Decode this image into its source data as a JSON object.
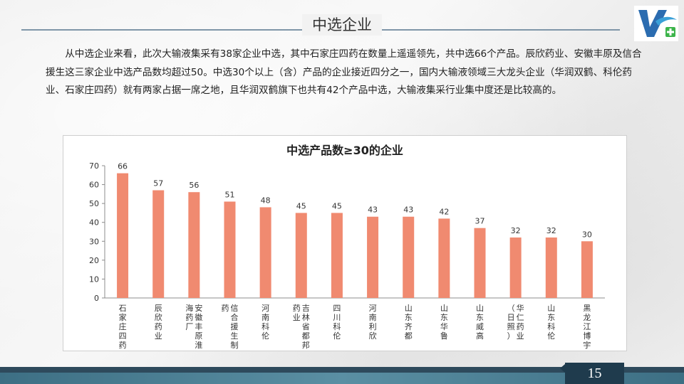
{
  "slide": {
    "title": "中选企业",
    "page_number": "15",
    "intro": "从中选企业来看，此次大输液集采有38家企业中选，其中石家庄四药在数量上遥遥领先，共中选66个产品。辰欣药业、安徽丰原及信合援生这三家企业中选产品数均超过50。中选30个以上（含）产品的企业接近四分之一，国内大输液领域三大龙头企业（华润双鹤、科伦药业、石家庄四药）就有两家占据一席之地，且华润双鹤旗下也共有42个产品中选，大输液集采行业集中度还是比较高的。"
  },
  "colors": {
    "bar": "#f08a70",
    "axis": "#8c8c8c",
    "title_rule": "#7f96a8",
    "footer_dark": "#1f3b4d"
  },
  "chart_data": {
    "type": "bar",
    "title": "中选产品数≥30的企业",
    "ylim": [
      0,
      70
    ],
    "yticks": [
      0,
      10,
      20,
      30,
      40,
      50,
      60,
      70
    ],
    "grid": false,
    "categories": [
      [
        "石",
        "家",
        "庄",
        "四",
        "药"
      ],
      [
        "辰",
        "欣",
        "药",
        "业"
      ],
      [
        "海",
        "药",
        "厂|安",
        "徽",
        "丰",
        "原",
        "淮"
      ],
      [
        "药|信",
        "合",
        "援",
        "生",
        "制"
      ],
      [
        "河",
        "南",
        "科",
        "伦"
      ],
      [
        "药",
        "业|吉",
        "林",
        "省",
        "都",
        "邦"
      ],
      [
        "四",
        "川",
        "科",
        "伦"
      ],
      [
        "河",
        "南",
        "利",
        "欣"
      ],
      [
        "山",
        "东",
        "齐",
        "都"
      ],
      [
        "山",
        "东",
        "华",
        "鲁"
      ],
      [
        "山",
        "东",
        "威",
        "高"
      ],
      [
        "（",
        "日",
        "照",
        "）|华",
        "仁",
        "药",
        "业"
      ],
      [
        "山",
        "东",
        "科",
        "伦"
      ],
      [
        "黑",
        "龙",
        "江",
        "博",
        "宇"
      ]
    ],
    "values": [
      66,
      57,
      56,
      51,
      48,
      45,
      45,
      43,
      43,
      42,
      37,
      32,
      32,
      30
    ]
  }
}
